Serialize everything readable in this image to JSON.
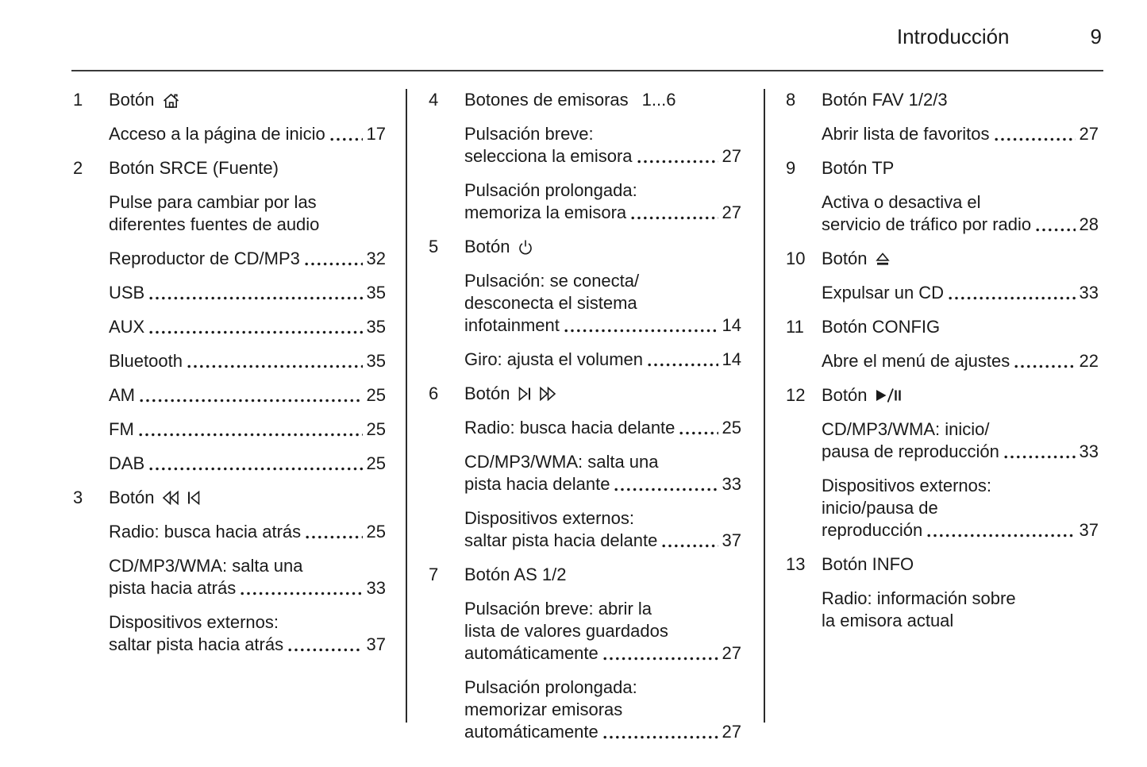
{
  "header": {
    "title": "Introducción",
    "page_number": "9"
  },
  "icons": {
    "home-icon": "⌂",
    "rewind-icon": "◁◁",
    "prev-track-icon": "|◁",
    "power-icon": "⏻",
    "next-track-icon": "▷|",
    "fast-forward-icon": "▷▷",
    "eject-icon": "⏏",
    "play-pause-icon": "▶/II"
  },
  "columns": [
    {
      "items": [
        {
          "num": "1",
          "label": "Botón",
          "icons": [
            "home-icon"
          ],
          "entries": [
            {
              "lines": [
                "Acceso a la página de inicio"
              ],
              "page": "17"
            }
          ]
        },
        {
          "num": "2",
          "label": "Botón SRCE (Fuente)",
          "entries": [
            {
              "lines": [
                "Pulse para cambiar por las",
                "diferentes fuentes de audio"
              ]
            },
            {
              "lines": [
                "Reproductor de CD/MP3"
              ],
              "page": "32"
            },
            {
              "lines": [
                "USB"
              ],
              "page": "35"
            },
            {
              "lines": [
                "AUX"
              ],
              "page": "35"
            },
            {
              "lines": [
                "Bluetooth"
              ],
              "page": "35"
            },
            {
              "lines": [
                "AM"
              ],
              "page": "25"
            },
            {
              "lines": [
                "FM"
              ],
              "page": "25"
            },
            {
              "lines": [
                "DAB"
              ],
              "page": "25"
            }
          ]
        },
        {
          "num": "3",
          "label": "Botón",
          "icons": [
            "rewind-icon",
            "prev-track-icon"
          ],
          "entries": [
            {
              "lines": [
                "Radio: busca hacia atrás"
              ],
              "page": "25"
            },
            {
              "lines": [
                "CD/MP3/WMA: salta una",
                "pista hacia atrás"
              ],
              "page": "33"
            },
            {
              "lines": [
                "Dispositivos externos:",
                "saltar pista hacia atrás"
              ],
              "page": "37"
            }
          ]
        }
      ]
    },
    {
      "items": [
        {
          "num": "4",
          "label": "Botones de emisoras",
          "suffix": "1...6",
          "entries": [
            {
              "lines": [
                "Pulsación breve:",
                "selecciona la emisora"
              ],
              "page": "27"
            },
            {
              "lines": [
                "Pulsación prolongada:",
                "memoriza la emisora"
              ],
              "page": "27"
            }
          ]
        },
        {
          "num": "5",
          "label": "Botón",
          "icons": [
            "power-icon"
          ],
          "entries": [
            {
              "lines": [
                "Pulsación: se conecta/",
                "desconecta el sistema",
                "infotainment"
              ],
              "page": "14"
            },
            {
              "lines": [
                "Giro: ajusta el volumen"
              ],
              "page": "14"
            }
          ]
        },
        {
          "num": "6",
          "label": "Botón",
          "icons": [
            "next-track-icon",
            "fast-forward-icon"
          ],
          "entries": [
            {
              "lines": [
                "Radio: busca hacia delante"
              ],
              "page": "25"
            },
            {
              "lines": [
                "CD/MP3/WMA: salta una",
                "pista hacia delante"
              ],
              "page": "33"
            },
            {
              "lines": [
                "Dispositivos externos:",
                "saltar pista hacia delante"
              ],
              "page": "37"
            }
          ]
        },
        {
          "num": "7",
          "label": "Botón AS 1/2",
          "entries": [
            {
              "lines": [
                "Pulsación breve: abrir la",
                "lista de valores guardados",
                "automáticamente"
              ],
              "page": "27"
            },
            {
              "lines": [
                "Pulsación prolongada:",
                "memorizar emisoras",
                "automáticamente"
              ],
              "page": "27"
            }
          ]
        }
      ]
    },
    {
      "items": [
        {
          "num": "8",
          "label": "Botón FAV 1/2/3",
          "entries": [
            {
              "lines": [
                "Abrir lista de favoritos"
              ],
              "page": "27"
            }
          ]
        },
        {
          "num": "9",
          "label": "Botón TP",
          "entries": [
            {
              "lines": [
                "Activa o desactiva el",
                "servicio de tráfico por radio"
              ],
              "page": "28"
            }
          ]
        },
        {
          "num": "10",
          "label": "Botón",
          "icons": [
            "eject-icon"
          ],
          "entries": [
            {
              "lines": [
                "Expulsar un CD"
              ],
              "page": "33"
            }
          ]
        },
        {
          "num": "11",
          "label": "Botón CONFIG",
          "entries": [
            {
              "lines": [
                "Abre el menú de ajustes"
              ],
              "page": "22"
            }
          ]
        },
        {
          "num": "12",
          "label": "Botón",
          "icons": [
            "play-pause-icon"
          ],
          "entries": [
            {
              "lines": [
                "CD/MP3/WMA: inicio/",
                "pausa de reproducción"
              ],
              "page": "33"
            },
            {
              "lines": [
                "Dispositivos externos:",
                "inicio/pausa de",
                "reproducción"
              ],
              "page": "37"
            }
          ]
        },
        {
          "num": "13",
          "label": "Botón INFO",
          "entries": [
            {
              "lines": [
                "Radio: información sobre",
                "la emisora actual"
              ]
            }
          ]
        }
      ]
    }
  ]
}
